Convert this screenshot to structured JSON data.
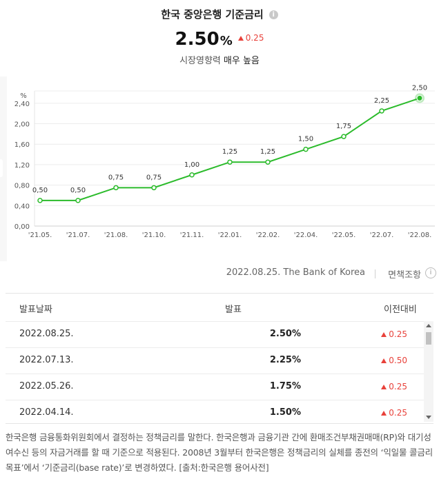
{
  "header": {
    "title": "한국 중앙은행 기준금리",
    "info_icon": "info-icon",
    "rate_value": "2.50",
    "rate_unit": "%",
    "change": "0.25",
    "influence_label": "시장영향력",
    "influence_value": "매우 높음"
  },
  "chart_data": {
    "type": "line",
    "ylabel": "%",
    "ylim": [
      0,
      2.64
    ],
    "yticks": [
      "0,00",
      "0,40",
      "0,80",
      "1,20",
      "1,60",
      "2,00",
      "2,40"
    ],
    "categories": [
      "'21.05.",
      "'21.07.",
      "'21.08.",
      "'21.10.",
      "'21.11.",
      "'22.01.",
      "'22.02.",
      "'22.04.",
      "'22.05.",
      "'22.07.",
      "'22.08."
    ],
    "series": [
      {
        "values": [
          0.5,
          0.5,
          0.75,
          0.75,
          1.0,
          1.25,
          1.25,
          1.5,
          1.75,
          2.25,
          2.5
        ]
      }
    ],
    "data_labels": [
      "0,50",
      "0,50",
      "0,75",
      "0,75",
      "1,00",
      "1,25",
      "1,25",
      "1,50",
      "1,75",
      "2,25",
      "2,50"
    ],
    "grid": true,
    "color": "#2bbb2b"
  },
  "source": {
    "text": "2022.08.25. The Bank of Korea",
    "disclaimer": "면책조항",
    "disclaimer_icon": "info-circle-icon"
  },
  "table": {
    "headers": [
      "발표날짜",
      "발표",
      "이전대비"
    ],
    "rows": [
      {
        "date": "2022.08.25.",
        "value": "2.50%",
        "change": "0.25"
      },
      {
        "date": "2022.07.13.",
        "value": "2.25%",
        "change": "0.50"
      },
      {
        "date": "2022.05.26.",
        "value": "1.75%",
        "change": "0.25"
      },
      {
        "date": "2022.04.14.",
        "value": "1.50%",
        "change": "0.25"
      }
    ]
  },
  "description": "한국은행 금융통화위원회에서 결정하는 정책금리를 말한다. 한국은행과 금융기관 간에 환매조건부채권매매(RP)와 대기성 여수신 등의 자금거래를 할 때 기준으로 적용된다. 2008년 3월부터 한국은행은 정책금리의 실체를 종전의 ‘익일물 콜금리 목표’에서 ‘기준금리(base rate)’로 변경하였다. [출처:한국은행 용어사전]",
  "colors": {
    "accent_green": "#2bbb2b",
    "up_red": "#e8413a"
  }
}
